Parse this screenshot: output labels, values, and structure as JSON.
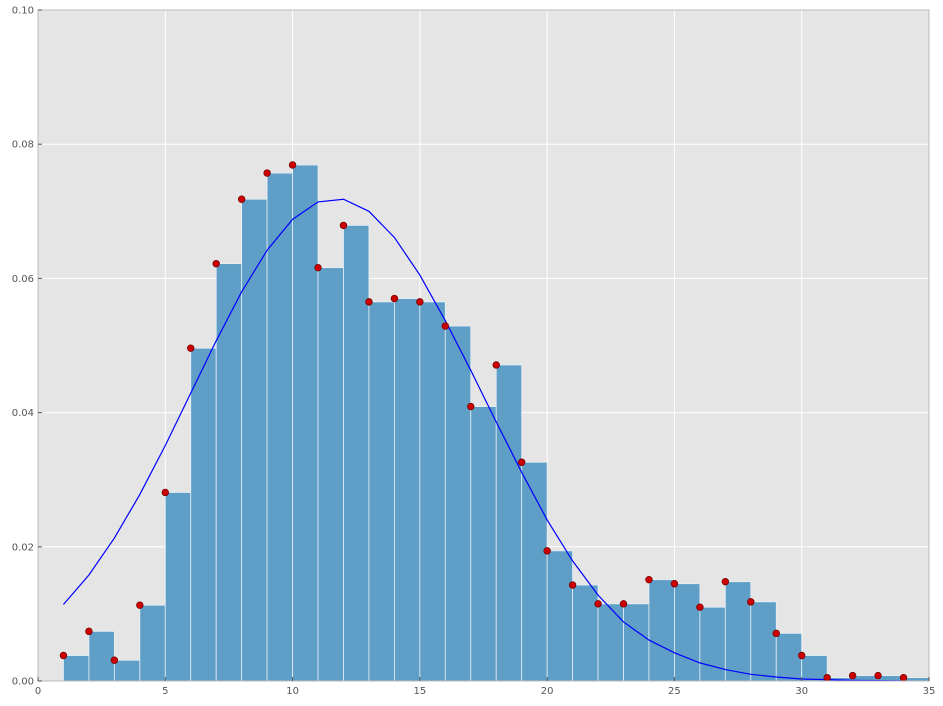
{
  "chart_data": {
    "type": "bar",
    "title": "",
    "xlabel": "",
    "ylabel": "",
    "xlim": [
      0,
      35
    ],
    "ylim": [
      0,
      0.1
    ],
    "grid": true,
    "x_ticks": [
      0,
      5,
      10,
      15,
      20,
      25,
      30,
      35
    ],
    "x_tick_labels": [
      "0",
      "5",
      "10",
      "15",
      "20",
      "25",
      "30",
      "35"
    ],
    "y_ticks": [
      0,
      0.02,
      0.04,
      0.06,
      0.08,
      0.1
    ],
    "y_tick_labels": [
      "0.00",
      "0.02",
      "0.04",
      "0.06",
      "0.08",
      "0.10"
    ],
    "colors": {
      "background": "#e5e5e5",
      "grid": "#ffffff",
      "bars": "#5f9ec6",
      "bar_edge": "#e5f0f7",
      "line": "#0000ff",
      "markers": "#cc0000",
      "marker_edge": "#7a0000",
      "spine": "#bcbcbc"
    },
    "histogram": {
      "bin_starts": [
        1,
        2,
        3,
        4,
        5,
        6,
        7,
        8,
        9,
        10,
        11,
        12,
        13,
        14,
        15,
        16,
        17,
        18,
        19,
        20,
        21,
        22,
        23,
        24,
        25,
        26,
        27,
        28,
        29,
        30,
        31,
        32,
        33,
        34
      ],
      "bin_width": 1,
      "values": [
        0.0038,
        0.0074,
        0.0031,
        0.0113,
        0.0281,
        0.0496,
        0.0622,
        0.0718,
        0.0757,
        0.0769,
        0.0616,
        0.0679,
        0.0565,
        0.057,
        0.0565,
        0.0529,
        0.0409,
        0.0471,
        0.0326,
        0.0194,
        0.0143,
        0.0115,
        0.0115,
        0.0151,
        0.0145,
        0.011,
        0.0148,
        0.0118,
        0.0071,
        0.0038,
        0.0005,
        0.0008,
        0.0008,
        0.0005
      ]
    },
    "points": {
      "x": [
        1,
        2,
        3,
        4,
        5,
        6,
        7,
        8,
        9,
        10,
        11,
        12,
        13,
        14,
        15,
        16,
        17,
        18,
        19,
        20,
        21,
        22,
        23,
        24,
        25,
        26,
        27,
        28,
        29,
        30,
        31,
        32,
        33,
        34
      ],
      "y": [
        0.0038,
        0.0074,
        0.0031,
        0.0113,
        0.0281,
        0.0496,
        0.0622,
        0.0718,
        0.0757,
        0.0769,
        0.0616,
        0.0679,
        0.0565,
        0.057,
        0.0565,
        0.0529,
        0.0409,
        0.0471,
        0.0326,
        0.0194,
        0.0143,
        0.0115,
        0.0115,
        0.0151,
        0.0145,
        0.011,
        0.0148,
        0.0118,
        0.0071,
        0.0038,
        0.0005,
        0.0008,
        0.0008,
        0.0005
      ]
    },
    "curve": {
      "x": [
        1,
        2,
        3,
        4,
        5,
        6,
        7,
        8,
        9,
        10,
        11,
        12,
        13,
        14,
        15,
        16,
        17,
        18,
        19,
        20,
        21,
        22,
        23,
        24,
        25,
        26,
        27,
        28,
        29,
        30,
        31,
        32,
        33,
        34
      ],
      "y": [
        0.0114,
        0.0158,
        0.0213,
        0.0278,
        0.0351,
        0.0429,
        0.0507,
        0.058,
        0.0642,
        0.0688,
        0.0714,
        0.0718,
        0.07,
        0.0661,
        0.0605,
        0.0537,
        0.0463,
        0.0386,
        0.0311,
        0.024,
        0.0179,
        0.0128,
        0.0088,
        0.0061,
        0.0042,
        0.0027,
        0.0017,
        0.001,
        0.0006,
        0.0003,
        0.0002,
        0.0001,
        5e-05,
        3e-05
      ]
    }
  }
}
